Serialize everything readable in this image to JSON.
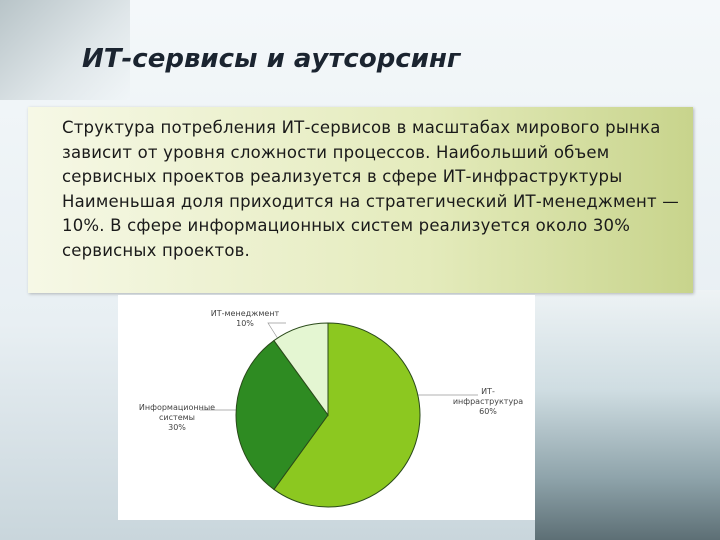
{
  "slide": {
    "title": "ИТ-сервисы и аутсорсинг",
    "text": "Структура потребления ИТ-сервисов в масштабах мирового рынка зависит от уровня сложности процессов. Наибольший объем сервисных проектов реализуется в сфере ИТ-инфраструктуры Наименьшая доля приходится на стратегический ИТ-менеджмент — 10%. В сфере информационных систем реализуется около 30% сервисных проектов."
  },
  "chart_data": {
    "type": "pie",
    "categories": [
      "ИТ-инфраструктура",
      "Информационные системы",
      "ИТ-менеджмент"
    ],
    "values": [
      60,
      30,
      10
    ],
    "value_labels": [
      "60%",
      "30%",
      "10%"
    ],
    "colors": [
      "#8cc820",
      "#2e8b22",
      "#e4f6d2"
    ]
  }
}
